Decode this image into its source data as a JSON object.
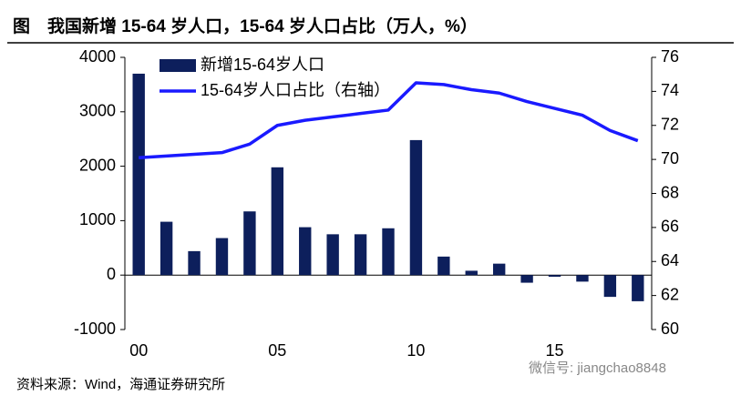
{
  "chart_data": {
    "type": "bar_line",
    "title": "图　我国新增 15-64 岁人口，15-64 岁人口占比（万人，%）",
    "source": "资料来源：Wind，海通证券研究所",
    "watermark": "微信号: jiangchao8848",
    "categories": [
      "00",
      null,
      null,
      null,
      null,
      "05",
      null,
      null,
      null,
      null,
      "10",
      null,
      null,
      null,
      null,
      "15",
      null,
      null,
      null
    ],
    "series": [
      {
        "name": "新增15-64岁人口",
        "color": "#0d1f5c",
        "type": "bar",
        "values": [
          3700,
          980,
          440,
          680,
          1170,
          1980,
          880,
          750,
          750,
          860,
          2480,
          340,
          80,
          210,
          -140,
          -30,
          -120,
          -400,
          -480
        ]
      },
      {
        "name": "15-64岁人口占比（右轴）",
        "color": "#1a1aff",
        "type": "line",
        "axis": "y2",
        "values": [
          70.1,
          70.2,
          70.3,
          70.4,
          70.9,
          72.0,
          72.3,
          72.5,
          72.7,
          72.9,
          74.5,
          74.4,
          74.1,
          73.9,
          73.4,
          73.0,
          72.6,
          71.7,
          71.1
        ]
      }
    ],
    "ylim": [
      -1000,
      4000
    ],
    "yticks": [
      -1000,
      0,
      1000,
      2000,
      3000,
      4000
    ],
    "y2lim": [
      60,
      76
    ],
    "y2ticks": [
      60,
      62,
      64,
      66,
      68,
      70,
      72,
      74,
      76
    ],
    "legend": "top-left"
  }
}
